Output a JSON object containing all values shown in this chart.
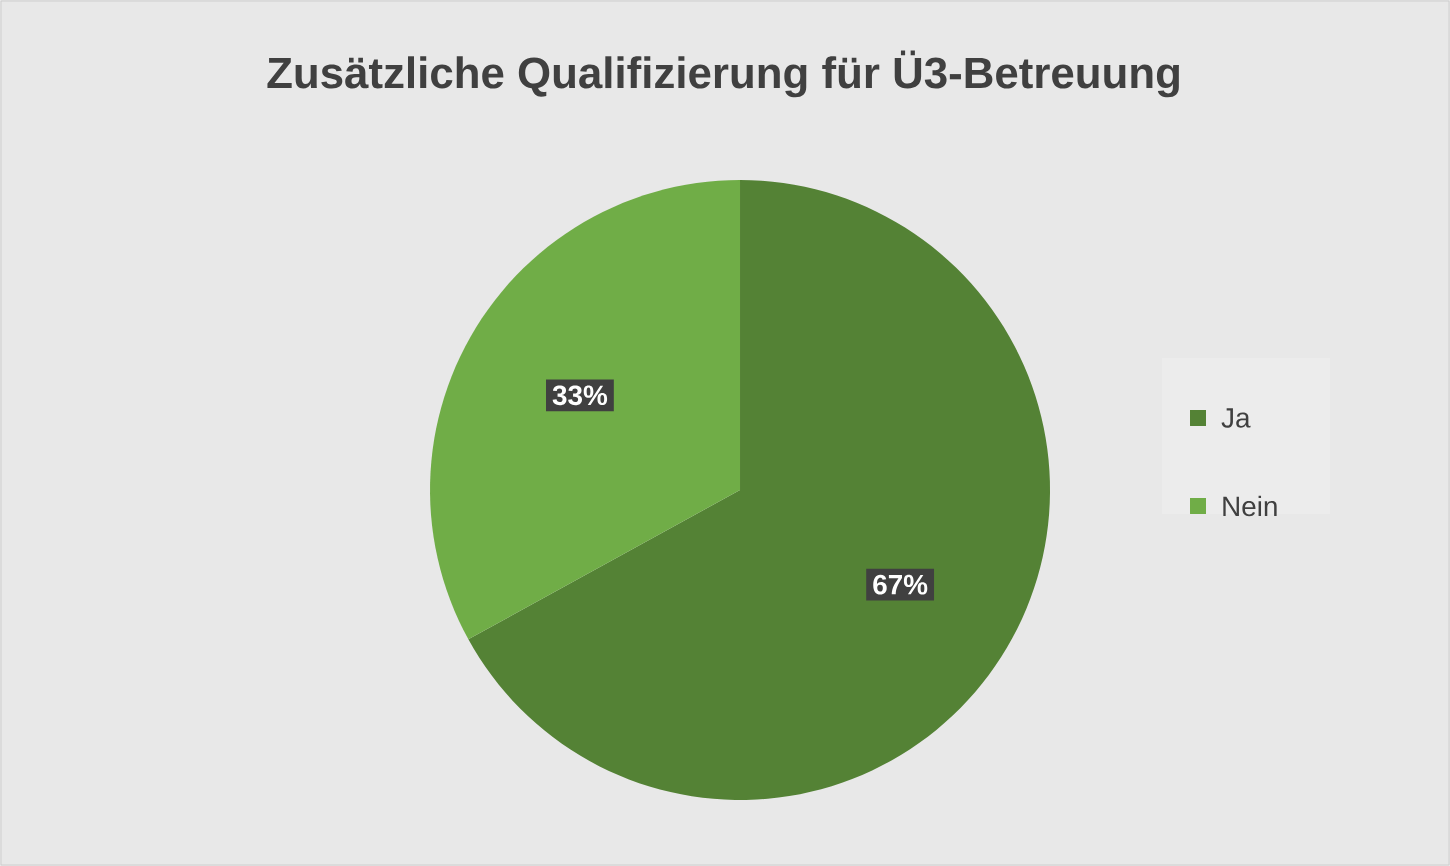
{
  "chart_data": {
    "type": "pie",
    "title": "Zusätzliche Qualifizierung für Ü3-Betreuung",
    "categories": [
      "Ja",
      "Nein"
    ],
    "values": [
      67,
      33
    ],
    "colors": [
      "#548235",
      "#70ad47"
    ],
    "value_labels": [
      "67%",
      "33%"
    ],
    "legend": "right"
  }
}
